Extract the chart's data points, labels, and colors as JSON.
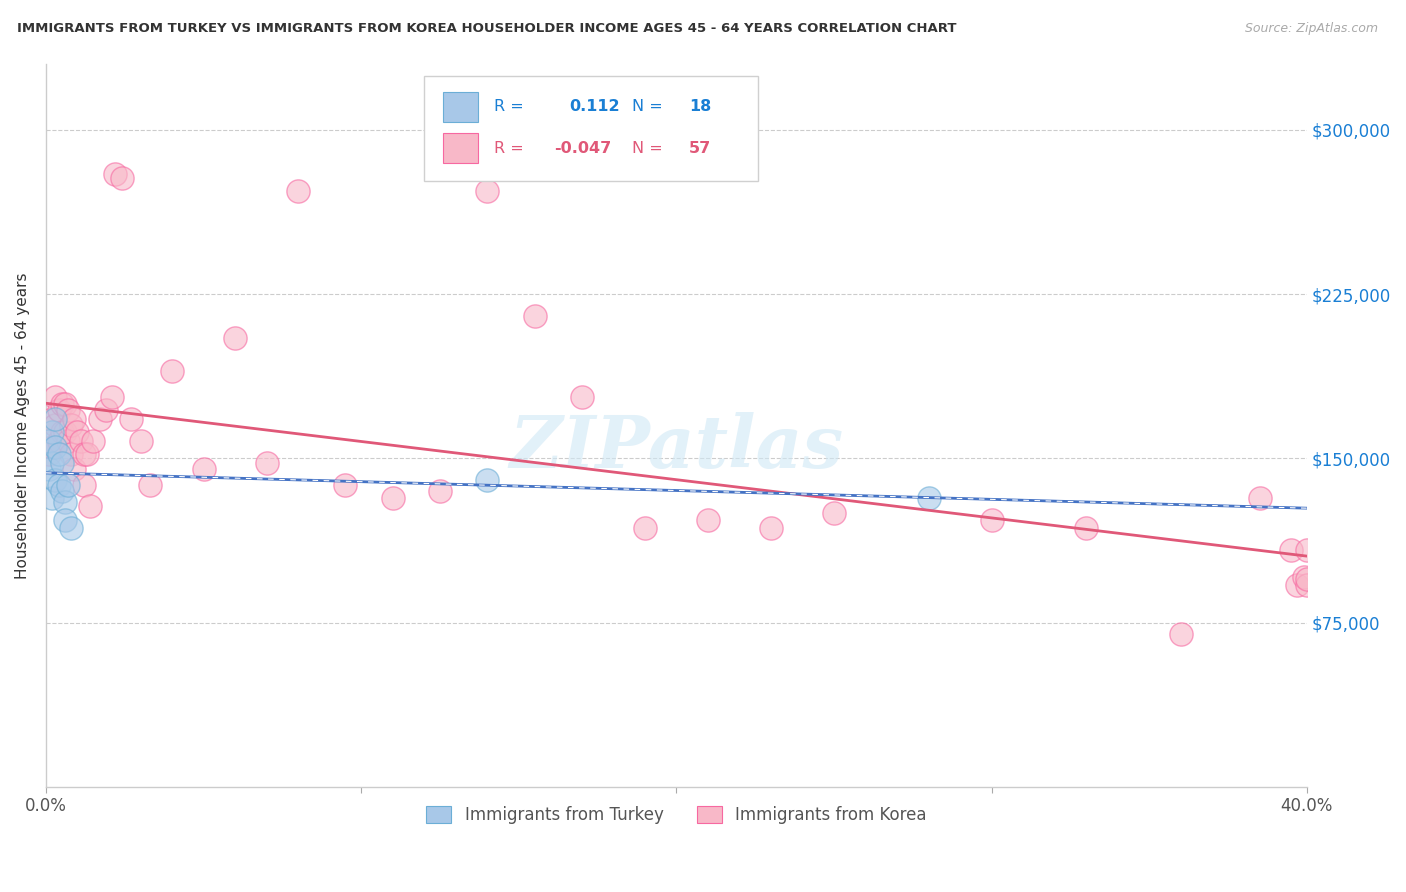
{
  "title": "IMMIGRANTS FROM TURKEY VS IMMIGRANTS FROM KOREA HOUSEHOLDER INCOME AGES 45 - 64 YEARS CORRELATION CHART",
  "source": "Source: ZipAtlas.com",
  "ylabel": "Householder Income Ages 45 - 64 years",
  "xlim": [
    0.0,
    0.4
  ],
  "ylim": [
    0,
    330000
  ],
  "yticks": [
    75000,
    150000,
    225000,
    300000
  ],
  "ytick_labels": [
    "$75,000",
    "$150,000",
    "$225,000",
    "$300,000"
  ],
  "xticks": [
    0.0,
    0.1,
    0.2,
    0.3,
    0.4
  ],
  "xtick_labels": [
    "0.0%",
    "",
    "",
    "",
    "40.0%"
  ],
  "turkey_color": "#a8c8e8",
  "turkey_edge": "#6baed6",
  "korea_color": "#f8b8c8",
  "korea_edge": "#f768a1",
  "turkey_line_color": "#4472c4",
  "korea_line_color": "#e05878",
  "turkey_R": 0.112,
  "turkey_N": 18,
  "korea_R": -0.047,
  "korea_N": 57,
  "watermark": "ZIPatlas",
  "turkey_x": [
    0.001,
    0.001,
    0.002,
    0.002,
    0.002,
    0.003,
    0.003,
    0.003,
    0.004,
    0.004,
    0.005,
    0.005,
    0.006,
    0.006,
    0.007,
    0.008,
    0.14,
    0.28
  ],
  "turkey_y": [
    158000,
    145000,
    162000,
    148000,
    132000,
    168000,
    155000,
    140000,
    152000,
    138000,
    148000,
    135000,
    130000,
    122000,
    138000,
    118000,
    140000,
    132000
  ],
  "korea_x": [
    0.001,
    0.002,
    0.002,
    0.003,
    0.003,
    0.004,
    0.004,
    0.005,
    0.005,
    0.006,
    0.006,
    0.007,
    0.007,
    0.008,
    0.008,
    0.009,
    0.009,
    0.01,
    0.011,
    0.012,
    0.012,
    0.013,
    0.014,
    0.015,
    0.017,
    0.019,
    0.021,
    0.022,
    0.024,
    0.027,
    0.03,
    0.033,
    0.04,
    0.05,
    0.06,
    0.07,
    0.08,
    0.095,
    0.11,
    0.125,
    0.14,
    0.155,
    0.17,
    0.19,
    0.21,
    0.23,
    0.25,
    0.3,
    0.33,
    0.36,
    0.385,
    0.395,
    0.397,
    0.399,
    0.4,
    0.4,
    0.4
  ],
  "korea_y": [
    152000,
    168000,
    155000,
    178000,
    165000,
    172000,
    158000,
    175000,
    162000,
    175000,
    162000,
    172000,
    158000,
    165000,
    152000,
    168000,
    145000,
    162000,
    158000,
    152000,
    138000,
    152000,
    128000,
    158000,
    168000,
    172000,
    178000,
    280000,
    278000,
    168000,
    158000,
    138000,
    190000,
    145000,
    205000,
    148000,
    272000,
    138000,
    132000,
    135000,
    272000,
    215000,
    178000,
    118000,
    122000,
    118000,
    125000,
    122000,
    118000,
    70000,
    132000,
    108000,
    92000,
    96000,
    108000,
    92000,
    95000
  ]
}
